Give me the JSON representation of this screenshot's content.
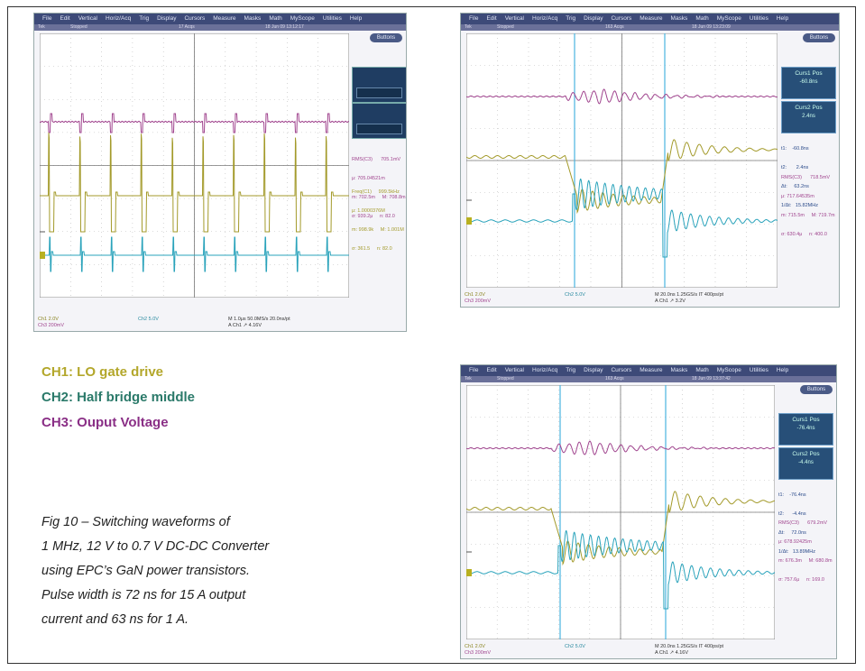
{
  "menu_items": [
    "File",
    "Edit",
    "Vertical",
    "Horiz/Acq",
    "Trig",
    "Display",
    "Cursors",
    "Measure",
    "Masks",
    "Math",
    "MyScope",
    "Utilities",
    "Help"
  ],
  "buttons_label": "Buttons",
  "scope1": {
    "status_left": "Tek",
    "status_mid": "Stopped",
    "status_acqs": "17 Acqs",
    "status_date": "18 Jun 09 13:12:17",
    "meas_rms": "RMS(C3)      705.1mV",
    "meas_rms_mu": "μ: 705.04521m",
    "meas_rms_m": "m: 702.5m     M: 708.8m",
    "meas_rms_s": "σ: 939.2μ     n: 82.0",
    "meas_freq": "Freq(C1)     999.5kHz",
    "meas_freq_mu": "μ: 1.0000376M",
    "meas_freq_m": "m: 998.9k     M: 1.001M",
    "meas_freq_s": "σ: 361.5     n: 82.0",
    "footer_ch1": "Ch1      2.0V",
    "footer_ch3": "Ch3   200mV",
    "footer_ch2": "Ch2      5.0V",
    "footer_time": "M 1.0μs 50.0MS/s      20.0ns/pt",
    "footer_trig": "A  Ch1  ↗  4.16V"
  },
  "scope2": {
    "status_left": "Tek",
    "status_mid": "Stopped",
    "status_acqs": "163 Acqs",
    "status_date": "18 Jun 09 13:23:09",
    "cursor1_label": "Curs1 Pos",
    "cursor1_value": "-60.8ns",
    "cursor2_label": "Curs2 Pos",
    "cursor2_value": "2.4ns",
    "cur_t1": "t1:    -60.8ns",
    "cur_t2": "t2:       2.4ns",
    "cur_dt": "Δt:     63.2ns",
    "cur_inv": "1/Δt:   15.82MHz",
    "meas_rms": "RMS(C3)      718.5mV",
    "meas_rms_mu": "μ: 717.64535m",
    "meas_rms_m": "m: 715.5m     M: 719.7m",
    "meas_rms_s": "σ: 630.4μ     n: 400.0",
    "footer_ch1": "Ch1      2.0V",
    "footer_ch3": "Ch3   200mV",
    "footer_ch2": "Ch2      5.0V",
    "footer_time": "M 20.0ns 1.25GS/s    IT 400ps/pt",
    "footer_trig": "A  Ch1  ↗  3.2V"
  },
  "scope3": {
    "status_left": "Tek",
    "status_mid": "Stopped",
    "status_acqs": "163 Acqs",
    "status_date": "18 Jun 09 13:37:42",
    "cursor1_label": "Curs1 Pos",
    "cursor1_value": "-76.4ns",
    "cursor2_label": "Curs2 Pos",
    "cursor2_value": "-4.4ns",
    "cur_t1": "t1:    -76.4ns",
    "cur_t2": "t2:      -4.4ns",
    "cur_dt": "Δt:     72.0ns",
    "cur_inv": "1/Δt:   13.89MHz",
    "meas_rms": "RMS(C3)      679.2mV",
    "meas_rms_mu": "μ: 678.92425m",
    "meas_rms_m": "m: 676.3m     M: 680.8m",
    "meas_rms_s": "σ: 757.6μ     n: 169.0",
    "footer_ch1": "Ch1      2.0V",
    "footer_ch3": "Ch3   200mV",
    "footer_ch2": "Ch2      5.0V",
    "footer_time": "M 20.0ns 1.25GS/s    IT 400ps/pt",
    "footer_trig": "A  Ch1  ↗  4.16V"
  },
  "legend": {
    "ch1": "CH1: LO gate drive",
    "ch2": "CH2: Half bridge middle",
    "ch3": "CH3: Ouput Voltage"
  },
  "caption": {
    "line1": "Fig 10 – Switching waveforms of",
    "line2": "1 MHz, 12 V to 0.7 V DC-DC Converter",
    "line3": "using EPC’s GaN power transistors.",
    "line4": "Pulse width is 72 ns for 15 A output",
    "line5": "current and 63 ns for 1 A."
  },
  "colors": {
    "ch1": "#a39a2a",
    "ch2": "#2aa3bb",
    "ch3": "#a0448e",
    "legend_ch1": "#b3a72b",
    "legend_ch2": "#2b7a6a",
    "legend_ch3": "#8a2f86",
    "cursor": "#4ab4e0"
  }
}
